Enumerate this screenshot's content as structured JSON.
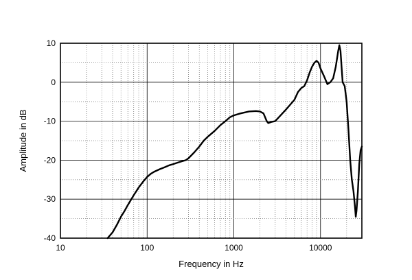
{
  "chart_data": {
    "type": "line",
    "title": "",
    "xlabel": "Frequency in Hz",
    "ylabel": "Amplitude in dB",
    "x_scale": "log",
    "xlim": [
      10,
      30000
    ],
    "ylim": [
      -40,
      10
    ],
    "x_ticks": [
      10,
      100,
      1000,
      10000
    ],
    "x_tick_labels": [
      "10",
      "100",
      "1000",
      "10000"
    ],
    "y_ticks": [
      10,
      0,
      -10,
      -20,
      -30,
      -40
    ],
    "y_tick_labels": [
      "10",
      "0",
      "-10",
      "-20",
      "-30",
      "-40"
    ],
    "grid": true,
    "legend": "none",
    "series": [
      {
        "color": "#000000",
        "points": [
          [
            35,
            -40
          ],
          [
            40,
            -38.5
          ],
          [
            45,
            -36.5
          ],
          [
            50,
            -34.5
          ],
          [
            55,
            -33
          ],
          [
            60,
            -31.5
          ],
          [
            70,
            -29
          ],
          [
            80,
            -27
          ],
          [
            90,
            -25.5
          ],
          [
            100,
            -24.3
          ],
          [
            110,
            -23.5
          ],
          [
            120,
            -23
          ],
          [
            140,
            -22.3
          ],
          [
            160,
            -21.8
          ],
          [
            180,
            -21.3
          ],
          [
            200,
            -21
          ],
          [
            220,
            -20.7
          ],
          [
            250,
            -20.3
          ],
          [
            280,
            -20
          ],
          [
            300,
            -19.5
          ],
          [
            350,
            -18
          ],
          [
            400,
            -16.5
          ],
          [
            450,
            -15
          ],
          [
            500,
            -14
          ],
          [
            600,
            -12.5
          ],
          [
            700,
            -11
          ],
          [
            800,
            -10
          ],
          [
            900,
            -9
          ],
          [
            1000,
            -8.5
          ],
          [
            1200,
            -8
          ],
          [
            1500,
            -7.5
          ],
          [
            1800,
            -7.4
          ],
          [
            2000,
            -7.5
          ],
          [
            2200,
            -8
          ],
          [
            2400,
            -10
          ],
          [
            2500,
            -10.5
          ],
          [
            2700,
            -10.2
          ],
          [
            3000,
            -10
          ],
          [
            3300,
            -9
          ],
          [
            4000,
            -7
          ],
          [
            5000,
            -4.5
          ],
          [
            5500,
            -2.5
          ],
          [
            6000,
            -1.5
          ],
          [
            6500,
            -1
          ],
          [
            7000,
            0.5
          ],
          [
            7500,
            2.5
          ],
          [
            8000,
            4
          ],
          [
            8500,
            5
          ],
          [
            9000,
            5.5
          ],
          [
            9500,
            5
          ],
          [
            10000,
            3.5
          ],
          [
            11000,
            1.5
          ],
          [
            12000,
            -0.5
          ],
          [
            13000,
            0
          ],
          [
            14000,
            1
          ],
          [
            15000,
            4
          ],
          [
            16000,
            8
          ],
          [
            16500,
            9.5
          ],
          [
            17000,
            8
          ],
          [
            17500,
            4
          ],
          [
            18000,
            0
          ],
          [
            19000,
            -1
          ],
          [
            20000,
            -5
          ],
          [
            21000,
            -12
          ],
          [
            22000,
            -20
          ],
          [
            23000,
            -25
          ],
          [
            24000,
            -28
          ],
          [
            25000,
            -32
          ],
          [
            25500,
            -34.5
          ],
          [
            26000,
            -33
          ],
          [
            27000,
            -28
          ],
          [
            28000,
            -21
          ],
          [
            29000,
            -17.5
          ],
          [
            30000,
            -16.5
          ]
        ]
      }
    ]
  }
}
